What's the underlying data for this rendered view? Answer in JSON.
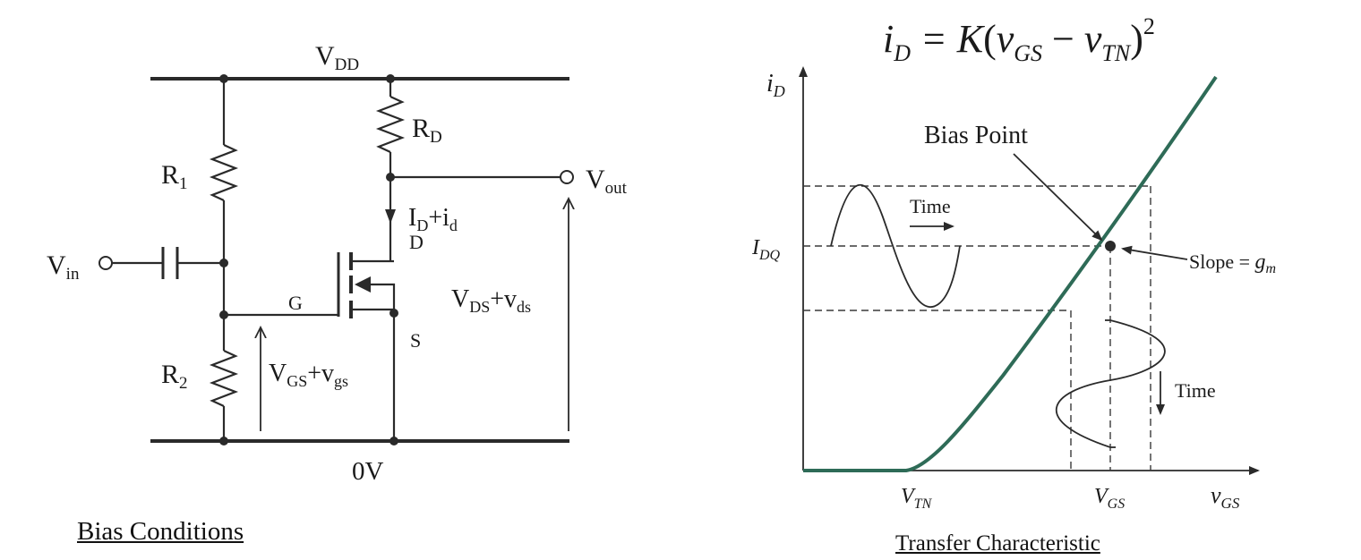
{
  "circuit": {
    "vdd": "V",
    "vdd_sub": "DD",
    "rd": "R",
    "rd_sub": "D",
    "r1": "R",
    "r1_sub": "1",
    "r2": "R",
    "r2_sub": "2",
    "vout": "V",
    "vout_sub": "out",
    "vin": "V",
    "vin_sub": "in",
    "id": "I",
    "id_sub1": "D",
    "id_plus": "+i",
    "id_sub2": "d",
    "drain": "D",
    "gate": "G",
    "source": "S",
    "vds": "V",
    "vds_sub1": "DS",
    "vds_plus": "+v",
    "vds_sub2": "ds",
    "vgs": "V",
    "vgs_sub1": "GS",
    "vgs_plus": "+v",
    "vgs_sub2": "gs",
    "ground": "0V",
    "caption": "Bias Conditions"
  },
  "transfer": {
    "equation": {
      "lhs": "i",
      "lhs_sub": "D",
      "eq": " = K",
      "open": "(",
      "v1": "v",
      "v1_sub": "GS",
      "minus": " − ",
      "v2": "v",
      "v2_sub": "TN",
      "close": ")",
      "power": "2"
    },
    "y_axis": "i",
    "y_axis_sub": "D",
    "x_axis": "v",
    "x_axis_sub": "GS",
    "idq": "I",
    "idq_sub": "DQ",
    "vtn": "V",
    "vtn_sub": "TN",
    "vgs_tick": "V",
    "vgs_tick_sub": "GS",
    "bias_point": "Bias Point",
    "slope": "Slope = ",
    "slope_g": "g",
    "slope_sub": "m",
    "time_top": "Time",
    "time_right": "Time",
    "curve_color": "#2e6b57",
    "caption": "Transfer Characteristic"
  }
}
